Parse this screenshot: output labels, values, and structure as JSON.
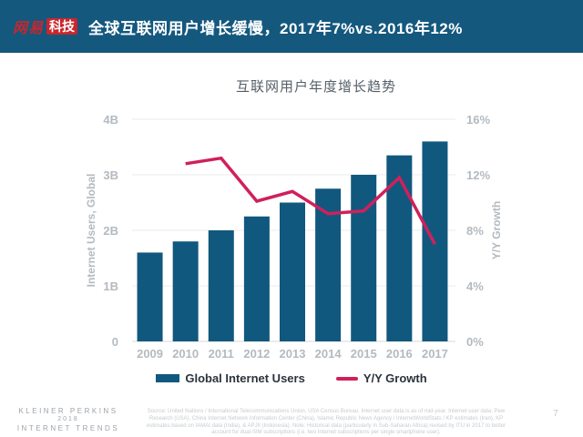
{
  "header": {
    "logo_brand": "网易",
    "logo_badge": "科技",
    "title": "全球互联网用户增长缓慢，2017年7%vs.2016年12%"
  },
  "chart_data": {
    "type": "bar",
    "title": "互联网用户年度增长趋势",
    "categories": [
      "2009",
      "2010",
      "2011",
      "2012",
      "2013",
      "2014",
      "2015",
      "2016",
      "2017"
    ],
    "series": [
      {
        "name": "Global Internet Users",
        "type": "bar",
        "axis": "left",
        "color": "#11587E",
        "unit": "billions",
        "values": [
          1.6,
          1.8,
          2.0,
          2.25,
          2.5,
          2.75,
          3.0,
          3.35,
          3.6
        ]
      },
      {
        "name": "Y/Y Growth",
        "type": "line",
        "axis": "right",
        "color": "#D0205C",
        "unit": "%",
        "values": [
          null,
          12.8,
          13.2,
          10.1,
          10.8,
          9.2,
          9.4,
          11.8,
          7.0
        ]
      }
    ],
    "left_axis": {
      "label": "Internet Users, Global",
      "tick_values": [
        0,
        1,
        2,
        3,
        4
      ],
      "tick_labels": [
        "0",
        "1B",
        "2B",
        "3B",
        "4B"
      ],
      "min": 0,
      "max": 4
    },
    "right_axis": {
      "label": "Y/Y Growth",
      "tick_values": [
        0,
        4,
        8,
        12,
        16
      ],
      "tick_labels": [
        "0%",
        "4%",
        "8%",
        "12%",
        "16%"
      ],
      "min": 0,
      "max": 16
    },
    "grid": true,
    "legend_position": "bottom"
  },
  "footer": {
    "brand_lines": [
      "KLEINER PERKINS",
      "2018",
      "INTERNET TRENDS"
    ],
    "source_text": "Source: United Nations / International Telecommunications Union, USA Census Bureau. Internet user data is as of mid-year. Internet user data: Pew Research (USA), China Internet Network Information Center (China), Islamic Republic News Agency / InternetWorldStats / KP estimates (Iran), KP estimates based on IAMAI data (India), & APJII (Indonesia). Note: Historical data (particularly in Sub-Saharan Africa) revised by ITU in 2017 to better account for dual-SIM subscriptions (i.e. two Internet subscriptions per single smartphone user).",
    "page_number": "7"
  },
  "colors": {
    "header_bg": "#14587E",
    "bar": "#11587E",
    "line": "#D0205C",
    "logo_red": "#C9262C",
    "axis_text": "#B3BAC0",
    "grid": "#E9EBEE",
    "baseline": "#D5D9DC",
    "chart_title_text": "#566069",
    "legend_text": "#2A333C"
  }
}
